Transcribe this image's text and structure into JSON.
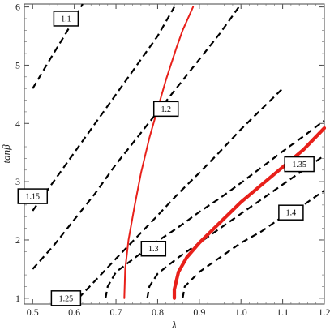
{
  "chart_data": {
    "type": "line",
    "title": "",
    "xlabel": "λ",
    "ylabel": "tanβ",
    "xlim": [
      0.48,
      1.2
    ],
    "ylim": [
      0.9,
      6.05
    ],
    "x_ticks": [
      0.5,
      0.6,
      0.7,
      0.8,
      0.9,
      1.0,
      1.1,
      1.2
    ],
    "x_tick_labels": [
      "0.5",
      "0.6",
      "0.7",
      "0.8",
      "0.9",
      "1.0",
      "1.1",
      "1.2"
    ],
    "y_ticks": [
      1,
      2,
      3,
      4,
      5,
      6
    ],
    "y_tick_labels": [
      "1",
      "2",
      "3",
      "4",
      "5",
      "6"
    ],
    "grid": false,
    "contours": [
      {
        "label": "1.1",
        "label_at": [
          0.58,
          5.8
        ],
        "points": [
          [
            0.5,
            4.6
          ],
          [
            0.54,
            5.08
          ],
          [
            0.58,
            5.55
          ],
          [
            0.62,
            6.05
          ]
        ]
      },
      {
        "label": "1.15",
        "label_at": [
          0.5,
          2.75
        ],
        "points": [
          [
            0.5,
            2.5
          ],
          [
            0.55,
            3.0
          ],
          [
            0.6,
            3.5
          ],
          [
            0.64,
            3.9
          ],
          [
            0.7,
            4.5
          ],
          [
            0.75,
            5.0
          ],
          [
            0.8,
            5.5
          ],
          [
            0.84,
            6.0
          ]
        ]
      },
      {
        "label": "1.2",
        "label_at": [
          0.82,
          4.25
        ],
        "points": [
          [
            0.5,
            1.5
          ],
          [
            0.55,
            1.9
          ],
          [
            0.6,
            2.35
          ],
          [
            0.65,
            2.8
          ],
          [
            0.7,
            3.3
          ],
          [
            0.75,
            3.75
          ],
          [
            0.8,
            4.2
          ],
          [
            0.85,
            4.65
          ],
          [
            0.9,
            5.1
          ],
          [
            0.95,
            5.55
          ],
          [
            1.0,
            6.05
          ]
        ]
      },
      {
        "label": "1.25",
        "label_at": [
          0.58,
          1.0
        ],
        "points": [
          [
            0.61,
            1.0
          ],
          [
            0.65,
            1.3
          ],
          [
            0.7,
            1.68
          ],
          [
            0.75,
            2.05
          ],
          [
            0.8,
            2.42
          ],
          [
            0.85,
            2.8
          ],
          [
            0.9,
            3.15
          ],
          [
            0.95,
            3.52
          ],
          [
            1.0,
            3.9
          ],
          [
            1.05,
            4.25
          ],
          [
            1.1,
            4.6
          ]
        ]
      },
      {
        "label": "1.3",
        "label_at": [
          0.79,
          1.85
        ],
        "points": [
          [
            0.675,
            1.0
          ],
          [
            0.68,
            1.2
          ],
          [
            0.7,
            1.45
          ],
          [
            0.75,
            1.72
          ],
          [
            0.8,
            1.98
          ],
          [
            0.85,
            2.22
          ],
          [
            0.9,
            2.48
          ],
          [
            0.95,
            2.72
          ],
          [
            1.0,
            2.98
          ],
          [
            1.05,
            3.25
          ],
          [
            1.1,
            3.52
          ],
          [
            1.15,
            3.78
          ],
          [
            1.2,
            4.05
          ]
        ]
      },
      {
        "label": "1.35",
        "label_at": [
          1.14,
          3.3
        ],
        "points": [
          [
            0.775,
            1.0
          ],
          [
            0.78,
            1.2
          ],
          [
            0.8,
            1.42
          ],
          [
            0.85,
            1.7
          ],
          [
            0.9,
            1.95
          ],
          [
            0.95,
            2.2
          ],
          [
            1.0,
            2.45
          ],
          [
            1.05,
            2.7
          ],
          [
            1.1,
            2.95
          ],
          [
            1.15,
            3.2
          ],
          [
            1.2,
            3.45
          ]
        ]
      },
      {
        "label": "1.4",
        "label_at": [
          1.12,
          2.47
        ],
        "points": [
          [
            0.86,
            1.0
          ],
          [
            0.865,
            1.2
          ],
          [
            0.9,
            1.45
          ],
          [
            0.95,
            1.7
          ],
          [
            1.0,
            1.95
          ],
          [
            1.05,
            2.15
          ],
          [
            1.1,
            2.4
          ],
          [
            1.15,
            2.6
          ],
          [
            1.2,
            2.85
          ]
        ]
      }
    ],
    "red_curves": [
      {
        "width": "thin",
        "points": [
          [
            0.72,
            1.0
          ],
          [
            0.722,
            1.5
          ],
          [
            0.73,
            2.0
          ],
          [
            0.745,
            2.6
          ],
          [
            0.76,
            3.15
          ],
          [
            0.78,
            3.75
          ],
          [
            0.8,
            4.25
          ],
          [
            0.82,
            4.75
          ],
          [
            0.845,
            5.3
          ],
          [
            0.86,
            5.6
          ],
          [
            0.885,
            6.0
          ]
        ]
      },
      {
        "width": "thick",
        "points": [
          [
            0.84,
            1.0
          ],
          [
            0.84,
            1.15
          ],
          [
            0.85,
            1.45
          ],
          [
            0.87,
            1.7
          ],
          [
            0.9,
            1.95
          ],
          [
            0.95,
            2.3
          ],
          [
            1.0,
            2.65
          ],
          [
            1.05,
            2.95
          ],
          [
            1.1,
            3.25
          ],
          [
            1.15,
            3.55
          ],
          [
            1.2,
            3.92
          ]
        ]
      }
    ]
  }
}
